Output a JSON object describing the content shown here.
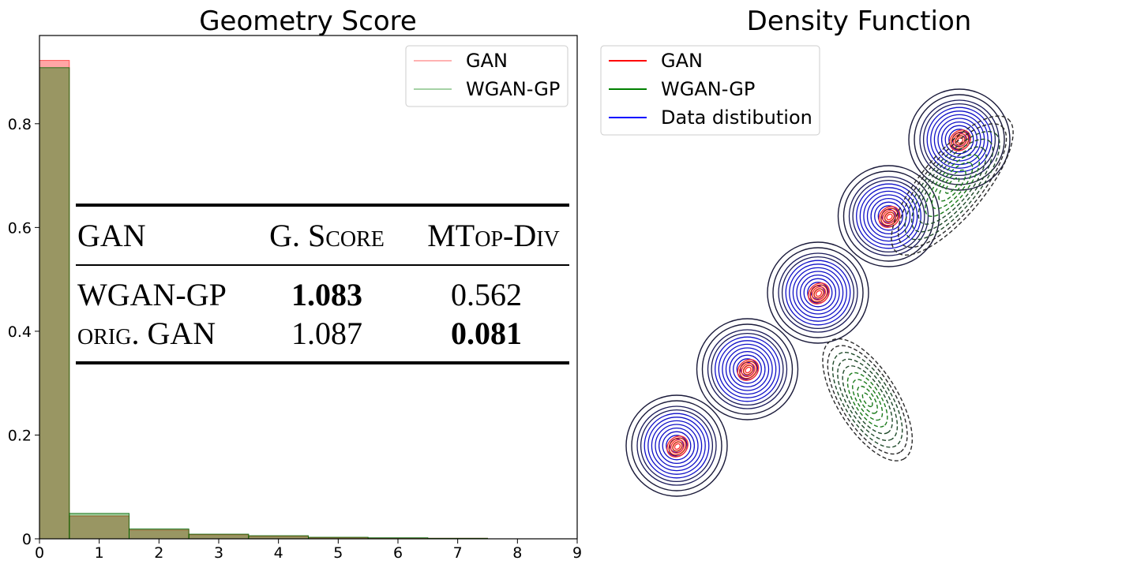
{
  "chart_data": [
    {
      "type": "bar",
      "subtype": "histogram",
      "title": "Geometry Score",
      "xlabel": "",
      "ylabel": "",
      "xlim": [
        0,
        9
      ],
      "ylim": [
        0,
        0.97
      ],
      "x_ticks": [
        "0",
        "1",
        "2",
        "3",
        "4",
        "5",
        "6",
        "7",
        "8",
        "9"
      ],
      "y_ticks": [
        "0",
        "0.2",
        "0.4",
        "0.6",
        "0.8"
      ],
      "bin_edges": [
        0,
        0.5,
        1.5,
        2.5,
        3.5,
        4.5,
        5.5,
        6.5,
        7.5
      ],
      "series": [
        {
          "name": "GAN",
          "color": "#ff0000",
          "values": [
            0.922,
            0.044,
            0.017,
            0.008,
            0.005,
            0.002,
            0.001,
            0.001
          ]
        },
        {
          "name": "WGAN-GP",
          "color": "#008000",
          "values": [
            0.908,
            0.049,
            0.019,
            0.009,
            0.006,
            0.003,
            0.002,
            0.001
          ]
        }
      ],
      "legend": {
        "placement": "top-right",
        "entries": [
          "GAN",
          "WGAN-GP"
        ]
      },
      "inset_table": {
        "headers": [
          "GAN",
          "G. Score",
          "MTop-Div"
        ],
        "rows": [
          {
            "name": "WGAN-GP",
            "gscore": "1.083",
            "mtopdiv": "0.562",
            "bold": "gscore"
          },
          {
            "name": "orig. GAN",
            "gscore": "1.087",
            "mtopdiv": "0.081",
            "bold": "mtopdiv"
          }
        ]
      }
    },
    {
      "type": "contour",
      "title": "Density Function",
      "legend": {
        "placement": "top-left",
        "entries": [
          {
            "name": "GAN",
            "color": "#ff0000"
          },
          {
            "name": "WGAN-GP",
            "color": "#008000"
          },
          {
            "name": "Data distibution",
            "color": "#0000ff"
          }
        ]
      },
      "data_modes": [
        [
          0,
          0
        ],
        [
          1,
          1
        ],
        [
          2,
          2
        ],
        [
          3,
          3
        ],
        [
          4,
          4
        ]
      ],
      "gan_modes": [
        [
          0,
          0
        ],
        [
          1,
          1
        ],
        [
          2,
          2
        ],
        [
          3,
          3
        ],
        [
          4,
          4
        ]
      ],
      "wgan_modes": [
        [
          2.7,
          0.6
        ],
        [
          3.9,
          3.4
        ]
      ]
    }
  ]
}
